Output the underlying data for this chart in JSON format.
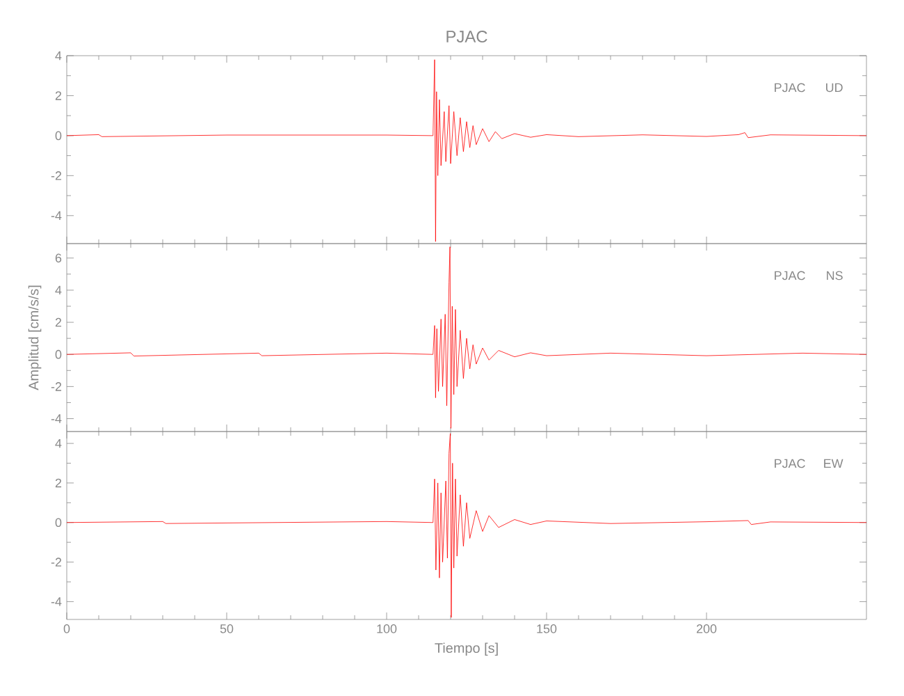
{
  "chart_data": [
    {
      "type": "line",
      "title": "PJAC",
      "annotations": [
        "PJAC",
        "UD"
      ],
      "xlim": [
        0,
        250
      ],
      "xticks": [
        0,
        50,
        100,
        150,
        200
      ],
      "ylim": [
        -5.4,
        4
      ],
      "yticks": [
        -4,
        -2,
        0,
        2,
        4
      ],
      "tick_labels": "y",
      "x": [
        0,
        10,
        11,
        50,
        100,
        114.5,
        115,
        115.3,
        115.6,
        116,
        116.5,
        117,
        118,
        118.5,
        119.5,
        120,
        121,
        122,
        123,
        124,
        125,
        126,
        127,
        128,
        130,
        132,
        134,
        136,
        140,
        145,
        150,
        160,
        180,
        200,
        210,
        212,
        213,
        220,
        250
      ],
      "series": [
        {
          "color": "#ff0000",
          "values": [
            0,
            0.05,
            -0.05,
            0.03,
            0.03,
            0,
            3.8,
            -5.3,
            2.2,
            -2.0,
            1.8,
            -1.5,
            1.2,
            -1.3,
            1.5,
            -1.4,
            1.2,
            -1.0,
            0.9,
            -0.8,
            0.7,
            -0.6,
            0.5,
            -0.45,
            0.35,
            -0.3,
            0.2,
            -0.15,
            0.1,
            -0.08,
            0.05,
            -0.05,
            0.04,
            -0.04,
            0.05,
            0.15,
            -0.1,
            0.04,
            0
          ]
        }
      ]
    },
    {
      "type": "line",
      "ylabel": "Amplitud [cm/s/s]",
      "annotations": [
        "PJAC",
        "NS"
      ],
      "xlim": [
        0,
        250
      ],
      "xticks": [
        0,
        50,
        100,
        150,
        200
      ],
      "ylim": [
        -4.8,
        6.9
      ],
      "yticks": [
        -4,
        -2,
        0,
        2,
        4,
        6
      ],
      "tick_labels": "y",
      "x": [
        0,
        20,
        21,
        60,
        61,
        100,
        114.5,
        115,
        115.3,
        115.7,
        116.2,
        117,
        117.5,
        118.3,
        118.8,
        119.5,
        119.8,
        120.1,
        120.5,
        121,
        121.5,
        122,
        123,
        124,
        125,
        126,
        127,
        128,
        130,
        132,
        135,
        140,
        145,
        150,
        170,
        200,
        230,
        250
      ],
      "series": [
        {
          "color": "#ff0000",
          "values": [
            0,
            0.1,
            -0.1,
            0.08,
            -0.08,
            0.08,
            0,
            1.8,
            -2.7,
            1.6,
            -2.3,
            2.2,
            -2.0,
            2.5,
            -3.2,
            4.5,
            6.7,
            -4.6,
            3.0,
            -2.5,
            2.8,
            -2.0,
            1.5,
            -1.5,
            1.0,
            -0.9,
            0.6,
            -0.6,
            0.4,
            -0.35,
            0.25,
            -0.15,
            0.1,
            -0.08,
            0.08,
            -0.08,
            0.08,
            0
          ]
        }
      ]
    },
    {
      "type": "line",
      "xlabel": "Tiempo [s]",
      "annotations": [
        "PJAC",
        "EW"
      ],
      "xlim": [
        0,
        250
      ],
      "xticks": [
        0,
        50,
        100,
        150,
        200
      ],
      "ylim": [
        -4.9,
        4.6
      ],
      "yticks": [
        -4,
        -2,
        0,
        2,
        4
      ],
      "x": [
        0,
        30,
        31,
        100,
        114.5,
        115,
        115.4,
        116,
        116.5,
        117,
        117.5,
        118.5,
        119,
        119.5,
        119.9,
        120.2,
        120.6,
        121,
        121.5,
        122,
        123,
        124,
        125,
        126,
        128,
        130,
        132,
        135,
        140,
        145,
        150,
        170,
        200,
        213,
        214,
        220,
        250
      ],
      "series": [
        {
          "color": "#ff0000",
          "values": [
            0,
            0.05,
            -0.05,
            0.05,
            0,
            2.2,
            -2.4,
            2.0,
            -2.8,
            1.5,
            -2.0,
            2.1,
            -1.8,
            3.5,
            4.5,
            -4.8,
            3.0,
            -2.3,
            2.2,
            -1.7,
            1.4,
            -1.2,
            1.0,
            -0.8,
            0.6,
            -0.45,
            0.35,
            -0.25,
            0.15,
            -0.1,
            0.08,
            -0.05,
            0.04,
            0.1,
            -0.1,
            0.03,
            0
          ]
        }
      ]
    }
  ]
}
